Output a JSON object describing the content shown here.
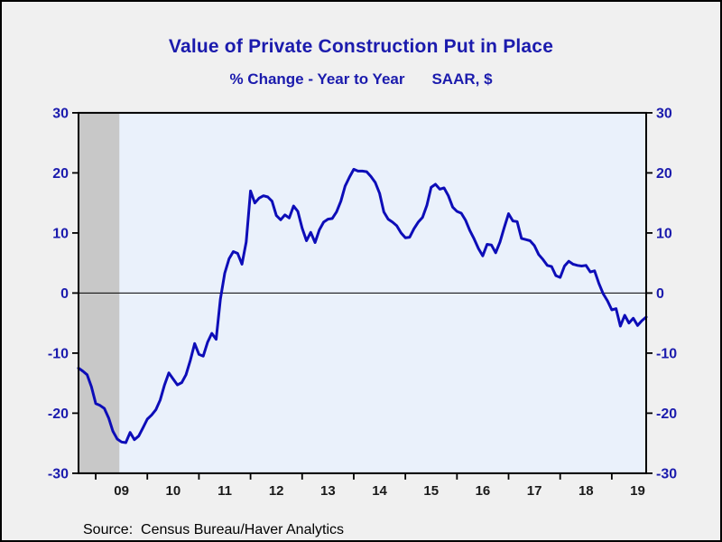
{
  "header": {
    "title": "Value of Private Construction Put in Place",
    "subtitle_left": "% Change - Year to Year",
    "subtitle_right": "SAAR, $"
  },
  "footer": {
    "source": "Source:  Census Bureau/Haver Analytics"
  },
  "colors": {
    "background": "#f0f0f0",
    "plot_background": "#eaf1fb",
    "recession_band": "#c8c8c8",
    "line": "#0d0db8",
    "blue_text": "#1b1bad",
    "axis": "#000000"
  },
  "chart_data": {
    "type": "line",
    "title": "Value of Private Construction Put in Place",
    "subtitle": "% Change - Year to Year    SAAR, $",
    "xlabel": "",
    "ylabel": "% Change - Year to Year",
    "source": "Source:  Census Bureau/Haver Analytics",
    "grid": false,
    "zero_line": true,
    "legend": null,
    "ylim": [
      -30,
      30
    ],
    "xlim": [
      2008.6667,
      2019.6667
    ],
    "yticks": [
      30,
      20,
      10,
      0,
      -10,
      -20,
      -30
    ],
    "xticks_years": [
      2009,
      2010,
      2011,
      2012,
      2013,
      2014,
      2015,
      2016,
      2017,
      2018,
      2019
    ],
    "xtick_labels": [
      "09",
      "10",
      "11",
      "12",
      "13",
      "14",
      "15",
      "16",
      "17",
      "18",
      "19"
    ],
    "recession_band": {
      "x_start": 2008.6667,
      "x_end": 2009.4583
    },
    "x_unit": "decimal year, monthly frequency starting Sep 2008",
    "x_start": 2008.6667,
    "x_step": 0.0833333,
    "values": [
      -12.5,
      -13.0,
      -13.6,
      -15.6,
      -18.4,
      -18.7,
      -19.2,
      -20.8,
      -23.0,
      -24.3,
      -24.8,
      -24.9,
      -23.2,
      -24.4,
      -23.8,
      -22.4,
      -21.0,
      -20.3,
      -19.4,
      -17.8,
      -15.3,
      -13.3,
      -14.3,
      -15.3,
      -14.9,
      -13.6,
      -11.2,
      -8.4,
      -10.2,
      -10.5,
      -8.2,
      -6.7,
      -7.7,
      -1.0,
      3.3,
      5.7,
      6.9,
      6.6,
      4.8,
      8.5,
      17.0,
      15.0,
      15.8,
      16.2,
      16.0,
      15.3,
      12.9,
      12.2,
      13.0,
      12.5,
      14.5,
      13.6,
      10.8,
      8.7,
      10.1,
      8.4,
      10.5,
      11.8,
      12.3,
      12.4,
      13.5,
      15.3,
      17.8,
      19.3,
      20.6,
      20.3,
      20.3,
      20.2,
      19.4,
      18.4,
      16.6,
      13.5,
      12.3,
      11.8,
      11.2,
      10.0,
      9.2,
      9.3,
      10.7,
      11.8,
      12.6,
      14.6,
      17.6,
      18.1,
      17.3,
      17.5,
      16.2,
      14.3,
      13.6,
      13.3,
      12.1,
      10.4,
      9.0,
      7.4,
      6.2,
      8.1,
      8.0,
      6.7,
      8.5,
      10.9,
      13.2,
      12.0,
      11.9,
      9.1,
      8.9,
      8.7,
      7.9,
      6.4,
      5.6,
      4.6,
      4.4,
      2.9,
      2.6,
      4.5,
      5.3,
      4.8,
      4.6,
      4.5,
      4.6,
      3.5,
      3.7,
      1.6,
      -0.1,
      -1.3,
      -2.8,
      -2.6,
      -5.5,
      -3.7,
      -5.0,
      -4.2,
      -5.4,
      -4.6,
      -4.0
    ]
  }
}
